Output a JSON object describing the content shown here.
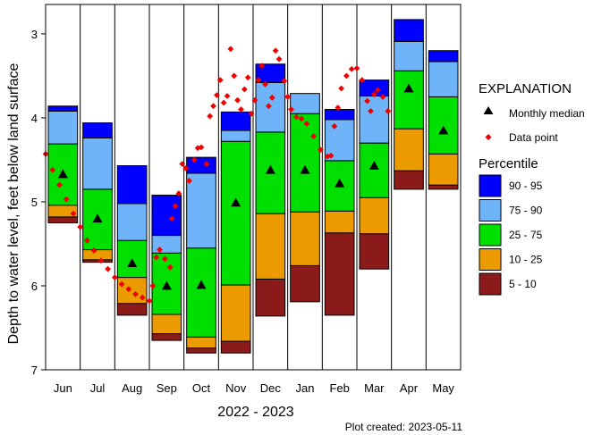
{
  "chart_data": {
    "type": "percentile-box",
    "title": "",
    "xlabel": "2022 - 2023",
    "ylabel": "Depth to water level, feet below land surface",
    "ylim": [
      7,
      2.65
    ],
    "y_ticks": [
      3,
      4,
      5,
      6,
      7
    ],
    "y_inverted": true,
    "months": [
      "Jun",
      "Jul",
      "Aug",
      "Sep",
      "Oct",
      "Nov",
      "Dec",
      "Jan",
      "Feb",
      "Mar",
      "Apr",
      "May"
    ],
    "percentiles": {
      "levels": [
        "p05",
        "p10",
        "p25",
        "p75",
        "p90",
        "p95"
      ],
      "values": [
        [
          5.25,
          5.18,
          5.04,
          4.31,
          3.92,
          3.86
        ],
        [
          5.72,
          5.69,
          5.57,
          4.85,
          4.24,
          4.06
        ],
        [
          6.35,
          6.21,
          5.9,
          5.46,
          5.02,
          4.57
        ],
        [
          6.65,
          6.57,
          6.34,
          5.61,
          5.4,
          4.92
        ],
        [
          6.8,
          6.74,
          6.61,
          5.55,
          4.66,
          4.47
        ],
        [
          6.8,
          6.66,
          5.99,
          4.28,
          4.15,
          3.93
        ],
        [
          6.36,
          5.92,
          5.14,
          4.17,
          3.58,
          3.36
        ],
        [
          6.19,
          5.76,
          5.12,
          3.95,
          3.71,
          3.71
        ],
        [
          6.35,
          5.37,
          5.11,
          4.51,
          4.02,
          3.9
        ],
        [
          5.8,
          5.38,
          4.95,
          4.3,
          3.74,
          3.55
        ],
        [
          4.85,
          4.63,
          4.13,
          3.44,
          3.09,
          2.83
        ],
        [
          4.85,
          4.8,
          4.43,
          3.75,
          3.33,
          3.2
        ]
      ]
    },
    "monthly_median": [
      4.67,
      5.2,
      5.73,
      6.0,
      5.99,
      5.01,
      4.62,
      4.62,
      4.78,
      4.57,
      3.65,
      4.15
    ],
    "data_points": [
      [
        -0.5,
        4.43
      ],
      [
        -0.3,
        4.62
      ],
      [
        -0.1,
        4.8
      ],
      [
        0.1,
        4.97
      ],
      [
        0.3,
        5.14
      ],
      [
        0.5,
        5.3
      ],
      [
        0.7,
        5.46
      ],
      [
        0.9,
        5.58
      ],
      [
        1.1,
        5.7
      ],
      [
        1.3,
        5.8
      ],
      [
        1.5,
        5.9
      ],
      [
        1.7,
        5.98
      ],
      [
        1.9,
        6.04
      ],
      [
        2.1,
        6.1
      ],
      [
        2.3,
        6.14
      ],
      [
        2.5,
        6.18
      ],
      [
        2.6,
        6.0
      ],
      [
        2.7,
        5.66
      ],
      [
        2.8,
        5.57
      ],
      [
        2.95,
        5.68
      ],
      [
        3.1,
        5.78
      ],
      [
        3.15,
        5.2
      ],
      [
        3.25,
        5.05
      ],
      [
        3.35,
        4.9
      ],
      [
        3.45,
        4.55
      ],
      [
        3.55,
        4.6
      ],
      [
        3.65,
        4.75
      ],
      [
        3.8,
        4.5
      ],
      [
        3.9,
        4.36
      ],
      [
        4.0,
        4.35
      ],
      [
        4.15,
        4.55
      ],
      [
        4.25,
        3.98
      ],
      [
        4.35,
        3.86
      ],
      [
        4.45,
        3.73
      ],
      [
        4.55,
        3.55
      ],
      [
        4.65,
        3.82
      ],
      [
        4.75,
        3.74
      ],
      [
        4.85,
        3.18
      ],
      [
        4.95,
        3.5
      ],
      [
        5.05,
        3.79
      ],
      [
        5.15,
        3.9
      ],
      [
        5.25,
        3.66
      ],
      [
        5.35,
        3.52
      ],
      [
        5.45,
        3.95
      ],
      [
        5.55,
        3.79
      ],
      [
        5.65,
        3.55
      ],
      [
        5.75,
        3.38
      ],
      [
        5.85,
        3.6
      ],
      [
        5.95,
        3.86
      ],
      [
        6.05,
        3.76
      ],
      [
        6.15,
        3.2
      ],
      [
        6.25,
        3.3
      ],
      [
        6.4,
        3.56
      ],
      [
        6.5,
        3.75
      ],
      [
        6.6,
        3.9
      ],
      [
        6.75,
        3.99
      ],
      [
        6.9,
        4.01
      ],
      [
        7.05,
        4.07
      ],
      [
        7.25,
        4.22
      ],
      [
        7.45,
        4.38
      ],
      [
        7.65,
        4.46
      ],
      [
        7.75,
        4.45
      ],
      [
        7.85,
        4.1
      ],
      [
        7.95,
        3.88
      ],
      [
        8.05,
        3.65
      ],
      [
        8.2,
        3.5
      ],
      [
        8.35,
        3.42
      ],
      [
        8.5,
        3.41
      ],
      [
        8.65,
        3.55
      ],
      [
        8.8,
        3.8
      ],
      [
        8.9,
        3.92
      ],
      [
        9.0,
        3.72
      ],
      [
        9.1,
        3.67
      ],
      [
        9.25,
        3.75
      ],
      [
        9.4,
        3.92
      ]
    ],
    "x_date_labels": [
      "2022",
      "2023"
    ],
    "legend": {
      "explanation_title": "EXPLANATION",
      "monthly_median_label": "Monthly median",
      "data_point_label": "Data point",
      "percentile_title": "Percentile",
      "bands": [
        {
          "label": "90 - 95",
          "color": "#0000ff"
        },
        {
          "label": "75 - 90",
          "color": "#6fb3f8"
        },
        {
          "label": "25 - 75",
          "color": "#00e000"
        },
        {
          "label": "10 - 25",
          "color": "#eb9b00"
        },
        {
          "label": "5 - 10",
          "color": "#8b1a1a"
        }
      ],
      "placement": "right"
    },
    "colors": {
      "p90_95": "#0000ff",
      "p75_90": "#6fb3f8",
      "p25_75": "#00e000",
      "p10_25": "#eb9b00",
      "p05_10": "#8b1a1a",
      "data_point": "#ee0000",
      "median": "#000000"
    }
  },
  "footer": {
    "plot_created": "Plot created: 2023-05-11"
  }
}
